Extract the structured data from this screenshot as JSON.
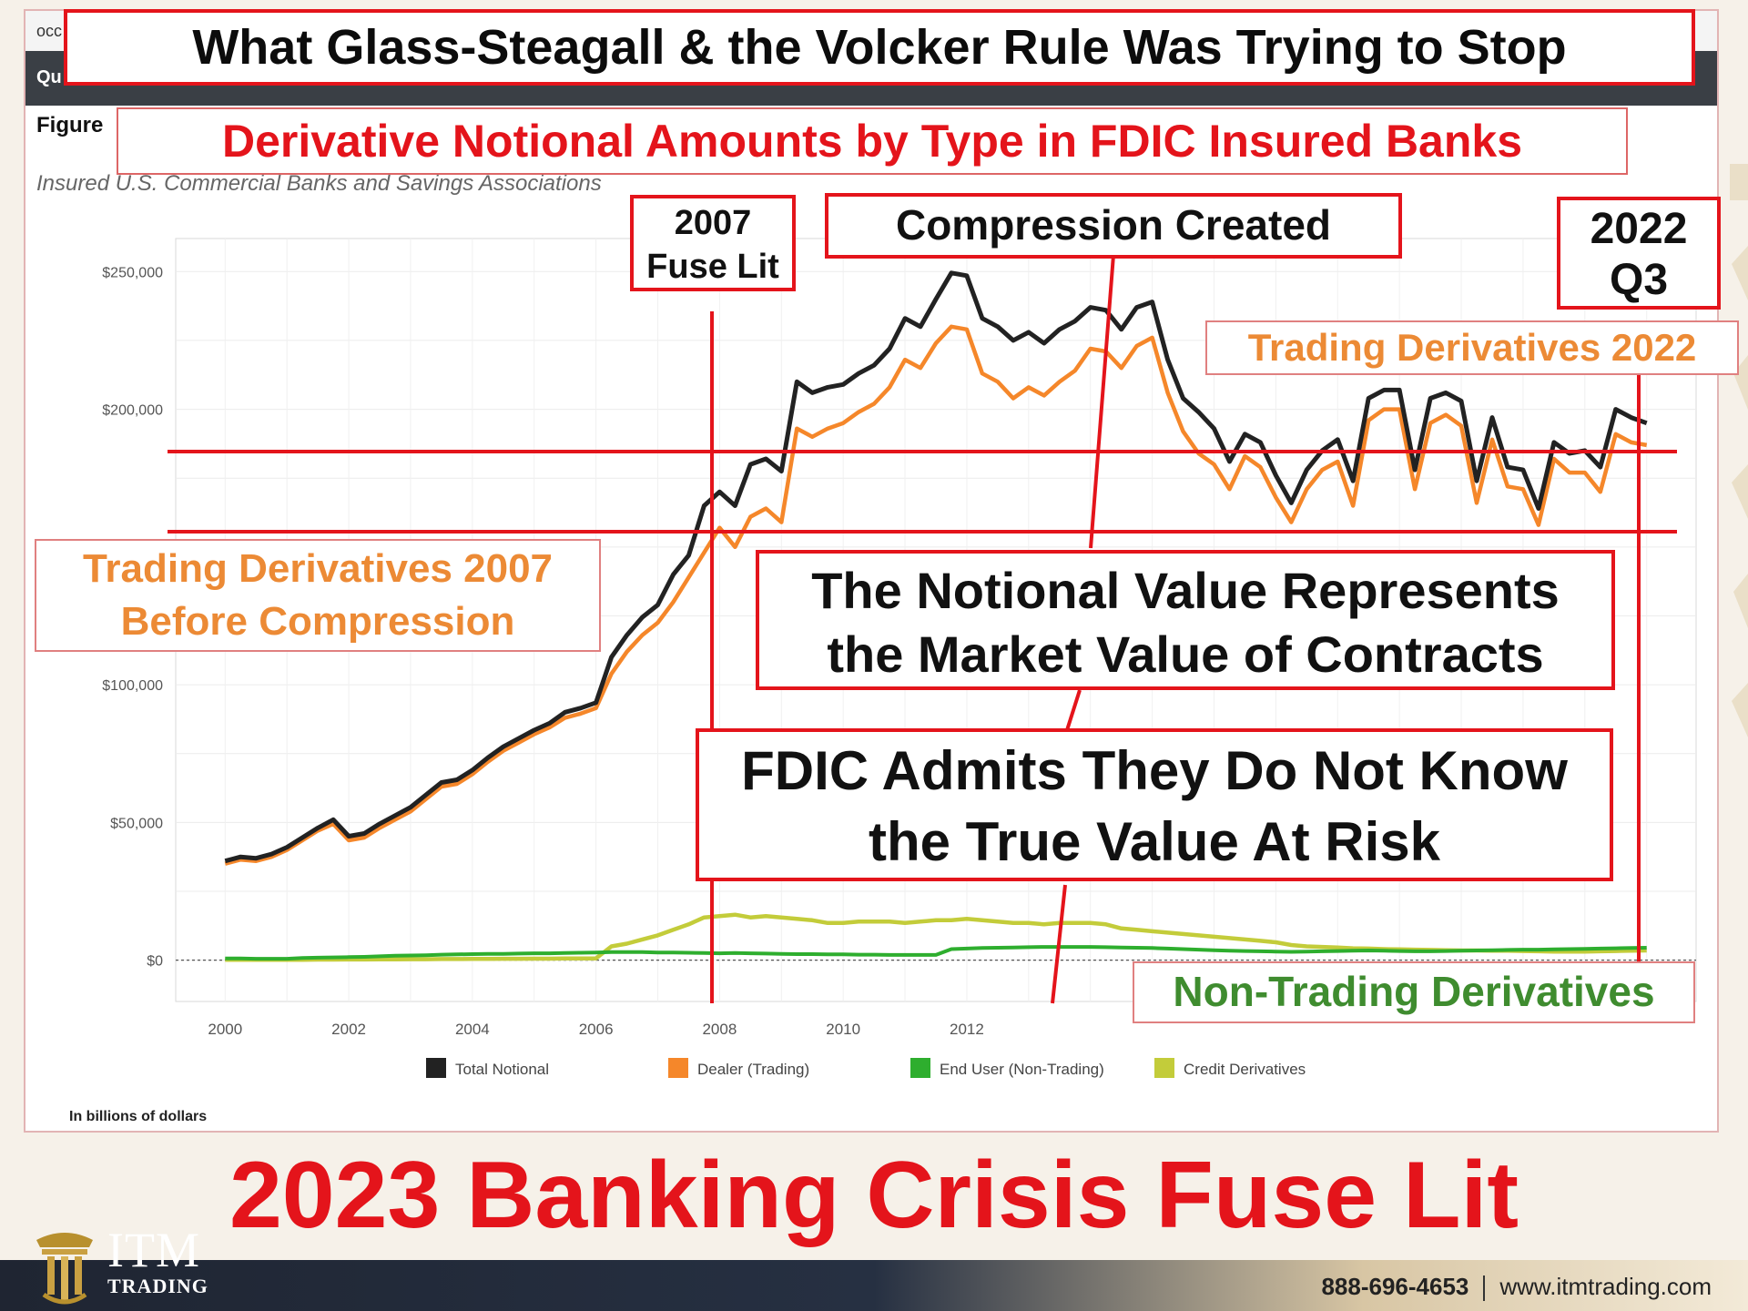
{
  "headline": "What Glass-Steagall & the Volcker Rule Was Trying to Stop",
  "subtitle_banner": "Derivative Notional Amounts by Type in FDIC Insured Banks",
  "screenshot": {
    "url_text": "occ",
    "nav_text": "Qu",
    "figure_label": "Figure",
    "chart_subtitle": "Insured U.S. Commercial Banks and Savings Associations",
    "units_note": "In billions of dollars"
  },
  "annotations": {
    "fuse_lit_2007": [
      "2007",
      "Fuse Lit"
    ],
    "compression_created": "Compression Created",
    "q3_2022": [
      "2022",
      "Q3"
    ],
    "trading_derivatives_2022": "Trading Derivatives 2022",
    "trading_derivatives_2007": [
      "Trading Derivatives 2007",
      "Before Compression"
    ],
    "notional_value": [
      "The Notional Value Represents",
      "the Market Value of Contracts"
    ],
    "fdic_admits": [
      "FDIC Admits They Do Not Know",
      "the True Value At Risk"
    ],
    "non_trading_derivatives": "Non-Trading Derivatives"
  },
  "bottom_title": "2023 Banking Crisis Fuse Lit",
  "footer": {
    "brand_name": "ITM",
    "brand_sub": "TRADING",
    "phone": "888-696-4653",
    "website": "www.itmtrading.com"
  },
  "colors": {
    "accent_red": "#e4141b",
    "total": "#222222",
    "dealer": "#f5872a",
    "enduser": "#2eae2e",
    "credit": "#c3cc3a"
  },
  "chart_data": {
    "type": "line",
    "title": "",
    "xlabel": "",
    "ylabel": "",
    "xlim": [
      1999.2,
      2023.8
    ],
    "ylim": [
      -15000,
      262000
    ],
    "y_ticks": [
      0,
      50000,
      100000,
      200000,
      250000
    ],
    "y_tick_labels": [
      "$0",
      "$50,000",
      "$100,000",
      "$200,000",
      "$250,000"
    ],
    "x_ticks": [
      2000,
      2002,
      2004,
      2006,
      2008,
      2010,
      2012
    ],
    "x_tick_labels": [
      "2000",
      "2002",
      "2004",
      "2006",
      "2008",
      "2010",
      "2012"
    ],
    "grid": true,
    "legend_position": "bottom",
    "x_start": 2000.0,
    "x_step": 0.25,
    "series": [
      {
        "name": "Total Notional",
        "color": "#222222",
        "values": [
          36000,
          37500,
          37000,
          38500,
          41000,
          44500,
          48000,
          51000,
          45000,
          46000,
          49500,
          52500,
          55500,
          60000,
          64500,
          65500,
          69000,
          73500,
          77500,
          80500,
          83500,
          86000,
          90000,
          91500,
          93500,
          110000,
          118000,
          124500,
          129000,
          140000,
          147000,
          165000,
          170000,
          165000,
          180000,
          182000,
          177500,
          210000,
          206000,
          208000,
          209000,
          213000,
          216000,
          222000,
          233000,
          230000,
          240000,
          249500,
          248500,
          233000,
          230000,
          225000,
          228000,
          224000,
          229000,
          232000,
          237000,
          236000,
          229000,
          237000,
          239000,
          218000,
          204000,
          199000,
          193000,
          181000,
          191000,
          188000,
          176000,
          166000,
          178000,
          185000,
          189000,
          174000,
          204000,
          207000,
          207000,
          178000,
          204000,
          206000,
          203000,
          174000,
          197000,
          179000,
          178000,
          164000,
          188000,
          184000,
          185000,
          179000,
          200000,
          197000,
          195000
        ]
      },
      {
        "name": "Dealer (Trading)",
        "color": "#f5872a",
        "values": [
          35000,
          36500,
          36000,
          37500,
          40000,
          43500,
          47000,
          49500,
          43500,
          44500,
          48000,
          51000,
          54000,
          58500,
          63000,
          64000,
          67500,
          72000,
          76000,
          79000,
          82000,
          84500,
          88000,
          89500,
          91500,
          104000,
          112000,
          118000,
          122500,
          130000,
          139000,
          148000,
          157000,
          150000,
          161000,
          164000,
          159000,
          193000,
          190000,
          193000,
          195000,
          199000,
          202000,
          208000,
          218000,
          215000,
          224000,
          230000,
          229000,
          213000,
          210000,
          204000,
          208000,
          205000,
          210000,
          214000,
          222000,
          221000,
          215000,
          223000,
          226000,
          206000,
          192000,
          184000,
          180000,
          171000,
          183000,
          179000,
          168000,
          159000,
          171000,
          178000,
          181000,
          165000,
          196000,
          200000,
          200000,
          171000,
          195000,
          198000,
          194000,
          166000,
          189000,
          172000,
          171000,
          158000,
          182000,
          177000,
          177000,
          170000,
          191000,
          188000,
          187000
        ]
      },
      {
        "name": "End User (Non-Trading)",
        "color": "#2eae2e",
        "values": [
          600,
          600,
          500,
          500,
          500,
          800,
          900,
          1000,
          1100,
          1200,
          1400,
          1600,
          1700,
          1800,
          2000,
          2100,
          2200,
          2300,
          2300,
          2400,
          2500,
          2500,
          2600,
          2700,
          2800,
          2900,
          2900,
          2900,
          2800,
          2800,
          2700,
          2600,
          2500,
          2600,
          2500,
          2400,
          2300,
          2200,
          2200,
          2100,
          2100,
          2000,
          2000,
          1900,
          1900,
          1900,
          1900,
          4000,
          4200,
          4400,
          4500,
          4600,
          4700,
          4800,
          4800,
          4800,
          4800,
          4700,
          4600,
          4500,
          4400,
          4200,
          4000,
          3800,
          3600,
          3400,
          3300,
          3200,
          3100,
          3000,
          3100,
          3200,
          3300,
          3400,
          3500,
          3400,
          3300,
          3200,
          3200,
          3300,
          3400,
          3500,
          3600,
          3700,
          3800,
          3800,
          3900,
          4000,
          4100,
          4200,
          4300,
          4400,
          4500
        ]
      },
      {
        "name": "Credit Derivatives",
        "color": "#c3cc3a",
        "values": [
          100,
          100,
          100,
          100,
          150,
          150,
          200,
          200,
          250,
          250,
          300,
          300,
          350,
          350,
          400,
          400,
          450,
          450,
          500,
          500,
          550,
          550,
          600,
          600,
          650,
          5000,
          6000,
          7500,
          9000,
          11000,
          13000,
          15500,
          16000,
          16500,
          15500,
          16000,
          15500,
          15000,
          14500,
          13500,
          13500,
          14000,
          14000,
          14000,
          13500,
          14000,
          14500,
          14500,
          15000,
          14500,
          14000,
          13500,
          13500,
          13000,
          13500,
          13500,
          13500,
          13000,
          11500,
          11000,
          10500,
          10000,
          9500,
          9000,
          8500,
          8000,
          7500,
          7000,
          6500,
          5500,
          5000,
          4800,
          4600,
          4300,
          4200,
          4000,
          3900,
          3800,
          3700,
          3600,
          3500,
          3500,
          3400,
          3400,
          3300,
          3200,
          3100,
          3100,
          3100,
          3200,
          3300,
          3400,
          3500
        ]
      }
    ]
  }
}
